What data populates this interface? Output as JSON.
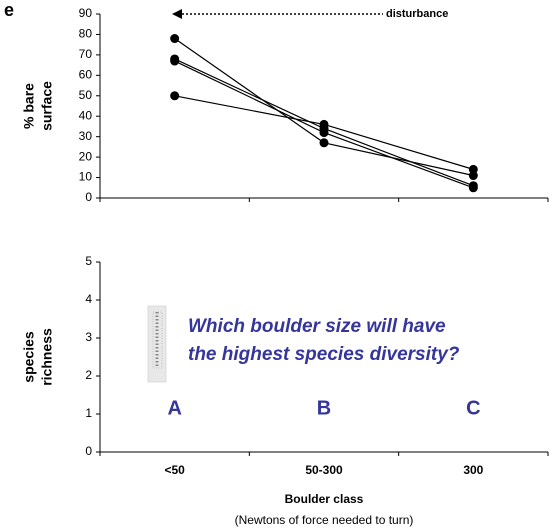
{
  "chart_data": [
    {
      "type": "line",
      "panel_label": "e",
      "y_label": [
        "% bare",
        "surface"
      ],
      "categories": [
        null,
        null,
        null
      ],
      "series": [
        {
          "color": "#000000",
          "values": [
            78,
            27,
            11
          ]
        },
        {
          "color": "#000000",
          "values": [
            68,
            34,
            6
          ]
        },
        {
          "color": "#000000",
          "values": [
            67,
            32,
            5
          ]
        },
        {
          "color": "#000000",
          "values": [
            50,
            36,
            14
          ]
        }
      ],
      "ylim": [
        0,
        90
      ],
      "yticks": [
        0,
        10,
        20,
        30,
        40,
        50,
        60,
        70,
        80,
        90
      ],
      "annotation": "disturbance"
    },
    {
      "type": "bar",
      "y_label": [
        "species",
        "richness"
      ],
      "categories": [
        "<50",
        "50-300",
        "300"
      ],
      "ylim": [
        0,
        5
      ],
      "yticks": [
        0,
        1,
        2,
        3,
        4,
        5
      ],
      "x_label": "Boulder class",
      "x_sublabel": "(Newtons of force needed to turn)",
      "question": [
        "Which boulder size will have",
        "the highest species diversity?"
      ],
      "letters": [
        "A",
        "B",
        "C"
      ],
      "text_color": "#35359a"
    }
  ]
}
